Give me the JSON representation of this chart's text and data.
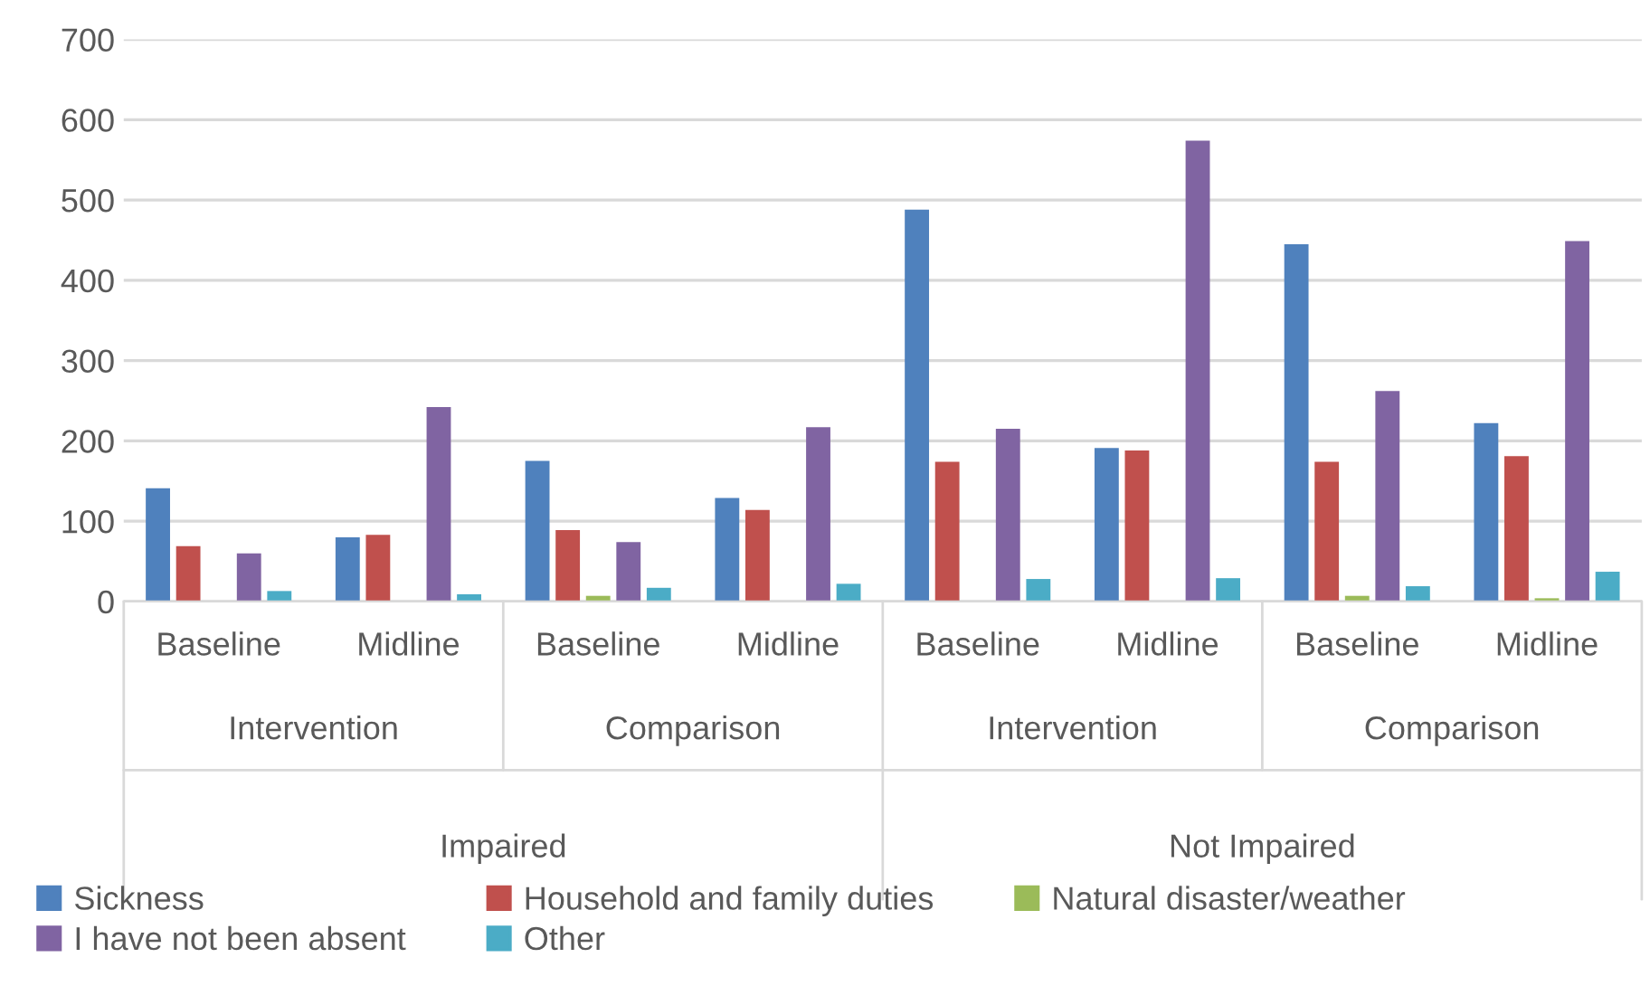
{
  "chart_data": {
    "type": "bar",
    "categories": [
      "Baseline",
      "Midline",
      "Baseline",
      "Midline",
      "Baseline",
      "Midline",
      "Baseline",
      "Midline"
    ],
    "series": [
      {
        "name": "Sickness",
        "color": "#4f81bd",
        "values": [
          141,
          80,
          175,
          129,
          488,
          191,
          445,
          222
        ]
      },
      {
        "name": "Household and family duties",
        "color": "#c0504d",
        "values": [
          69,
          83,
          89,
          114,
          174,
          188,
          174,
          181
        ]
      },
      {
        "name": "Natural disaster/weather",
        "color": "#9bbb59",
        "values": [
          null,
          null,
          7,
          null,
          null,
          0,
          7,
          4
        ]
      },
      {
        "name": "I have not been absent",
        "color": "#8064a2",
        "values": [
          60,
          242,
          74,
          217,
          215,
          574,
          262,
          449
        ]
      },
      {
        "name": "Other",
        "color": "#4bacc6",
        "values": [
          13,
          9,
          17,
          22,
          28,
          29,
          19,
          37
        ]
      }
    ],
    "annotations": [
      "Intervention",
      "Comparison",
      "Intervention",
      "Comparison",
      "Impaired",
      "Not Impaired"
    ],
    "ylim": [
      0,
      700
    ],
    "yticks": [
      0,
      100,
      200,
      300,
      400,
      500,
      600,
      700
    ],
    "grid": "y",
    "legend": "bottom"
  }
}
